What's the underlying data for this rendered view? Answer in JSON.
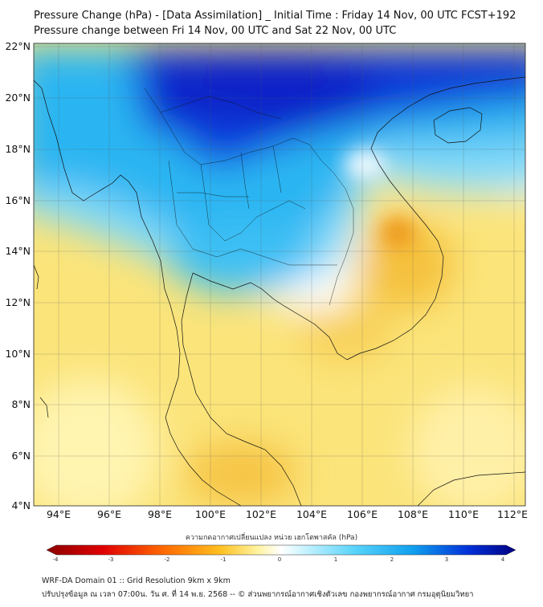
{
  "header": {
    "title_line1": "Pressure Change (hPa) - [Data Assimilation] _ Initial Time : Friday 14 Nov, 00 UTC FCST+192",
    "title_line2": "Pressure change between Fri 14 Nov, 00 UTC and Sat 22 Nov, 00 UTC"
  },
  "map": {
    "lat_labels": [
      "22°N",
      "20°N",
      "18°N",
      "16°N",
      "14°N",
      "12°N",
      "10°N",
      "8°N",
      "6°N",
      "4°N"
    ],
    "lon_labels": [
      "94°E",
      "96°E",
      "98°E",
      "100°E",
      "102°E",
      "104°E",
      "106°E",
      "108°E",
      "110°E",
      "112°E"
    ],
    "lat_range": [
      4,
      22
    ],
    "lon_range": [
      93,
      112.5
    ],
    "gridlines": true,
    "colors": {
      "strong_fall": "#0018c8",
      "moderate_fall": "#1aa8f0",
      "weak_fall": "#6fd6f8",
      "neutral": "#ffffff",
      "weak_rise": "#fff29a",
      "moderate_rise": "#f9d44a",
      "strong_rise": "#f2a21e"
    }
  },
  "colorbar": {
    "title": "ความกดอากาศเปลี่ยนแปลง หน่วย เฮกโตพาสคัล (hPa)",
    "min": -4,
    "max": 4,
    "tick_labels": [
      "-4",
      "-3",
      "-2",
      "-1",
      "0",
      "1",
      "2",
      "3",
      "4"
    ],
    "low_color": "#8b0000",
    "mid_color": "#ffffff",
    "high_color": "#000080"
  },
  "footer": {
    "line1": "WRF-DA Domain 01 :: Grid Resolution 9km x 9km",
    "line2": "ปรับปรุงข้อมูล ณ เวลา 07:00น. วัน ศ. ที่ 14 พ.ย. 2568 -- © ส่วนพยากรณ์อากาศเชิงตัวเลข กองพยากรณ์อากาศ กรมอุตุนิยมวิทยา"
  }
}
